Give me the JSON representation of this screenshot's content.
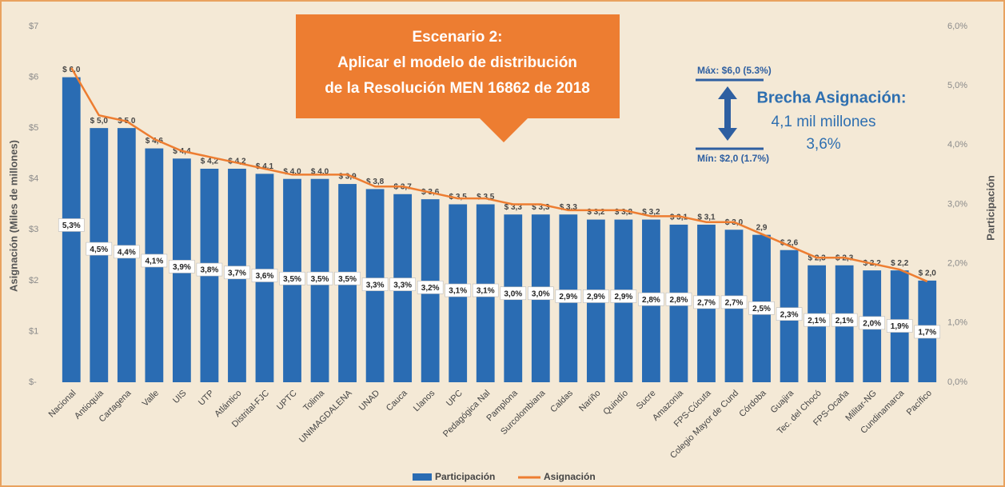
{
  "chart_data": {
    "type": "bar_line",
    "categories": [
      "Nacional",
      "Antioquia",
      "Cartagena",
      "Valle",
      "UIS",
      "UTP",
      "Atlántico",
      "Distrital-FJC",
      "UPTC",
      "Tolima",
      "UNIMAGDALENA",
      "UNAD",
      "Cauca",
      "Llanos",
      "UPC",
      "Pedagógica Nal",
      "Pamplona",
      "Surcolombiana",
      "Caldas",
      "Nariño",
      "Quindío",
      "Sucre",
      "Amazonia",
      "FPS-Cúcuta",
      "Colegio Mayor de Cund",
      "Córdoba",
      "Guajira",
      "Tec. del Chocó",
      "FPS-Ocaña",
      "Militar-NG",
      "Cundinamarca",
      "Pacífico"
    ],
    "series": [
      {
        "name": "Participación",
        "color": "#2a6cb3",
        "values": [
          6.0,
          5.0,
          5.0,
          4.6,
          4.4,
          4.2,
          4.2,
          4.1,
          4.0,
          4.0,
          3.9,
          3.8,
          3.7,
          3.6,
          3.5,
          3.5,
          3.3,
          3.3,
          3.3,
          3.2,
          3.2,
          3.2,
          3.1,
          3.1,
          3.0,
          2.9,
          2.6,
          2.3,
          2.3,
          2.2,
          2.2,
          2.0
        ],
        "value_labels": [
          "$ 6,0",
          "$ 5,0",
          "$ 5,0",
          "$ 4,6",
          "$ 4,4",
          "$ 4,2",
          "$ 4,2",
          "$ 4,1",
          "$ 4,0",
          "$ 4,0",
          "$ 3,9",
          "$ 3,8",
          "$ 3,7",
          "$ 3,6",
          "$ 3,5",
          "$ 3,5",
          "$ 3,3",
          "$ 3,3",
          "$ 3,3",
          "$ 3,2",
          "$ 3,2",
          "$ 3,2",
          "$ 3,1",
          "$ 3,1",
          "$ 3,0",
          "2,9",
          "$ 2,6",
          "$ 2,3",
          "$ 2,3",
          "$ 2,2",
          "$ 2,2",
          "$ 2,0"
        ]
      },
      {
        "name": "Asignación",
        "color": "#ed7d31",
        "axis": "y2",
        "values": [
          5.3,
          4.5,
          4.4,
          4.1,
          3.9,
          3.8,
          3.7,
          3.6,
          3.5,
          3.5,
          3.5,
          3.3,
          3.3,
          3.2,
          3.1,
          3.1,
          3.0,
          3.0,
          2.9,
          2.9,
          2.9,
          2.8,
          2.8,
          2.7,
          2.7,
          2.5,
          2.3,
          2.1,
          2.1,
          2.0,
          1.9,
          1.7
        ],
        "value_labels": [
          "5,3%",
          "4,5%",
          "4,4%",
          "4,1%",
          "3,9%",
          "3,8%",
          "3,7%",
          "3,6%",
          "3,5%",
          "3,5%",
          "3,5%",
          "3,3%",
          "3,3%",
          "3,2%",
          "3,1%",
          "3,1%",
          "3,0%",
          "3,0%",
          "2,9%",
          "2,9%",
          "2,9%",
          "2,8%",
          "2,8%",
          "2,7%",
          "2,7%",
          "2,5%",
          "2,3%",
          "2,1%",
          "2,1%",
          "2,0%",
          "1,9%",
          "1,7%"
        ]
      }
    ],
    "ylabel": "Asignación (Miles de millones)",
    "y2label": "Participación",
    "ylim": [
      0,
      7
    ],
    "yticks": [
      {
        "value": 0,
        "label": "$-"
      },
      {
        "value": 1,
        "label": "$1"
      },
      {
        "value": 2,
        "label": "$2"
      },
      {
        "value": 3,
        "label": "$3"
      },
      {
        "value": 4,
        "label": "$4"
      },
      {
        "value": 5,
        "label": "$5"
      },
      {
        "value": 6,
        "label": "$6"
      },
      {
        "value": 7,
        "label": "$7"
      }
    ],
    "y2lim": [
      0,
      6
    ],
    "y2ticks": [
      {
        "value": 0,
        "label": "0,0%"
      },
      {
        "value": 1,
        "label": "1,0%"
      },
      {
        "value": 2,
        "label": "2,0%"
      },
      {
        "value": 3,
        "label": "3,0%"
      },
      {
        "value": 4,
        "label": "4,0%"
      },
      {
        "value": 5,
        "label": "5,0%"
      },
      {
        "value": 6,
        "label": "6,0%"
      }
    ],
    "annotations": {
      "scenario": [
        "Escenario 2:",
        "Aplicar el modelo de distribución",
        "de la Resolución MEN 16862 de 2018"
      ],
      "max": "Máx: $6,0 (5.3%)",
      "gap_title": "Brecha Asignación:",
      "gap_amount": "4,1 mil millones",
      "gap_pct": "3,6%",
      "min": "Mín: $2,0 (1.7%)"
    }
  }
}
